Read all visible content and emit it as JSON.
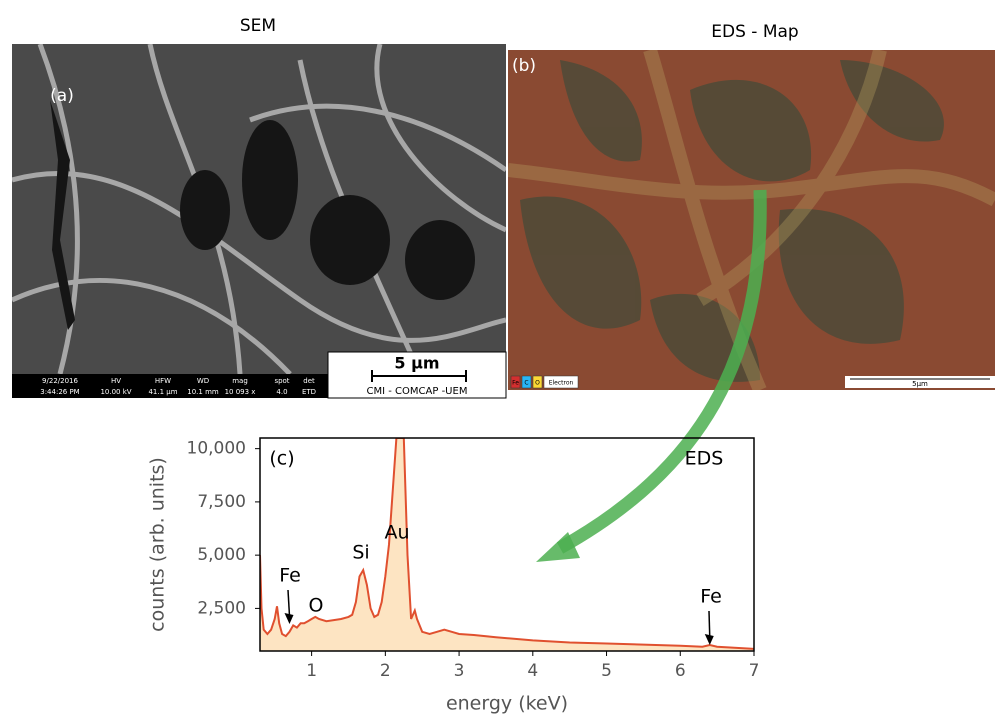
{
  "sem": {
    "title": "SEM",
    "label": "(a)",
    "scale": "5 μm",
    "credit": "CMI - COMCAP -UEM",
    "info_bar": [
      "9/22/2016",
      "3:44:26 PM",
      "HV",
      "10.00 kV",
      "HFW",
      "41.1 μm",
      "WD",
      "10.1 mm",
      "mag",
      "10 093 x",
      "spot",
      "4.0",
      "det",
      "ETD"
    ]
  },
  "eds_map": {
    "title": "EDS - Map",
    "label": "(b)",
    "legend": [
      "Fe",
      "C",
      "O",
      "Electron"
    ],
    "scale": "5μm"
  },
  "chart_data": {
    "type": "area",
    "label": "(c)",
    "annotation": "EDS",
    "x_label": "energy (keV)",
    "y_label": "counts (arb. units)",
    "xlim": [
      0.3,
      7
    ],
    "ylim": [
      500,
      10500
    ],
    "xticks": [
      1,
      2,
      3,
      4,
      5,
      6,
      7
    ],
    "yticks": [
      {
        "value": 2500,
        "label": "2,500"
      },
      {
        "value": 5000,
        "label": "5,000"
      },
      {
        "value": 7500,
        "label": "7,500"
      },
      {
        "value": 10000,
        "label": "10,000"
      }
    ],
    "line_color": "#e0502f",
    "fill_color": "#fde4c2",
    "x": [
      0.3,
      0.32,
      0.35,
      0.4,
      0.45,
      0.5,
      0.53,
      0.56,
      0.6,
      0.65,
      0.7,
      0.75,
      0.8,
      0.85,
      0.9,
      0.95,
      1.0,
      1.05,
      1.1,
      1.2,
      1.3,
      1.4,
      1.5,
      1.55,
      1.6,
      1.65,
      1.7,
      1.75,
      1.8,
      1.85,
      1.9,
      1.95,
      2.0,
      2.05,
      2.1,
      2.15,
      2.2,
      2.25,
      2.3,
      2.35,
      2.4,
      2.43,
      2.5,
      2.6,
      2.7,
      2.8,
      2.9,
      3.0,
      3.2,
      3.5,
      4.0,
      4.5,
      5.0,
      5.5,
      6.0,
      6.3,
      6.4,
      6.5,
      7.0
    ],
    "values": [
      5000,
      2500,
      1500,
      1300,
      1500,
      2000,
      2600,
      1800,
      1300,
      1200,
      1400,
      1700,
      1600,
      1800,
      1800,
      1900,
      2000,
      2100,
      2000,
      1900,
      1950,
      2000,
      2100,
      2200,
      2800,
      4000,
      4300,
      3600,
      2500,
      2100,
      2200,
      2800,
      4000,
      5500,
      8000,
      10500,
      10500,
      10500,
      5000,
      2000,
      2400,
      2000,
      1400,
      1300,
      1400,
      1500,
      1400,
      1300,
      1250,
      1150,
      1000,
      900,
      850,
      800,
      750,
      700,
      780,
      700,
      600
    ],
    "peaks": [
      {
        "label": "Fe",
        "x": 0.7
      },
      {
        "label": "O",
        "x": 1.05
      },
      {
        "label": "Si",
        "x": 1.65
      },
      {
        "label": "Au",
        "x": 2.15
      },
      {
        "label": "Fe",
        "x": 6.4
      }
    ]
  }
}
